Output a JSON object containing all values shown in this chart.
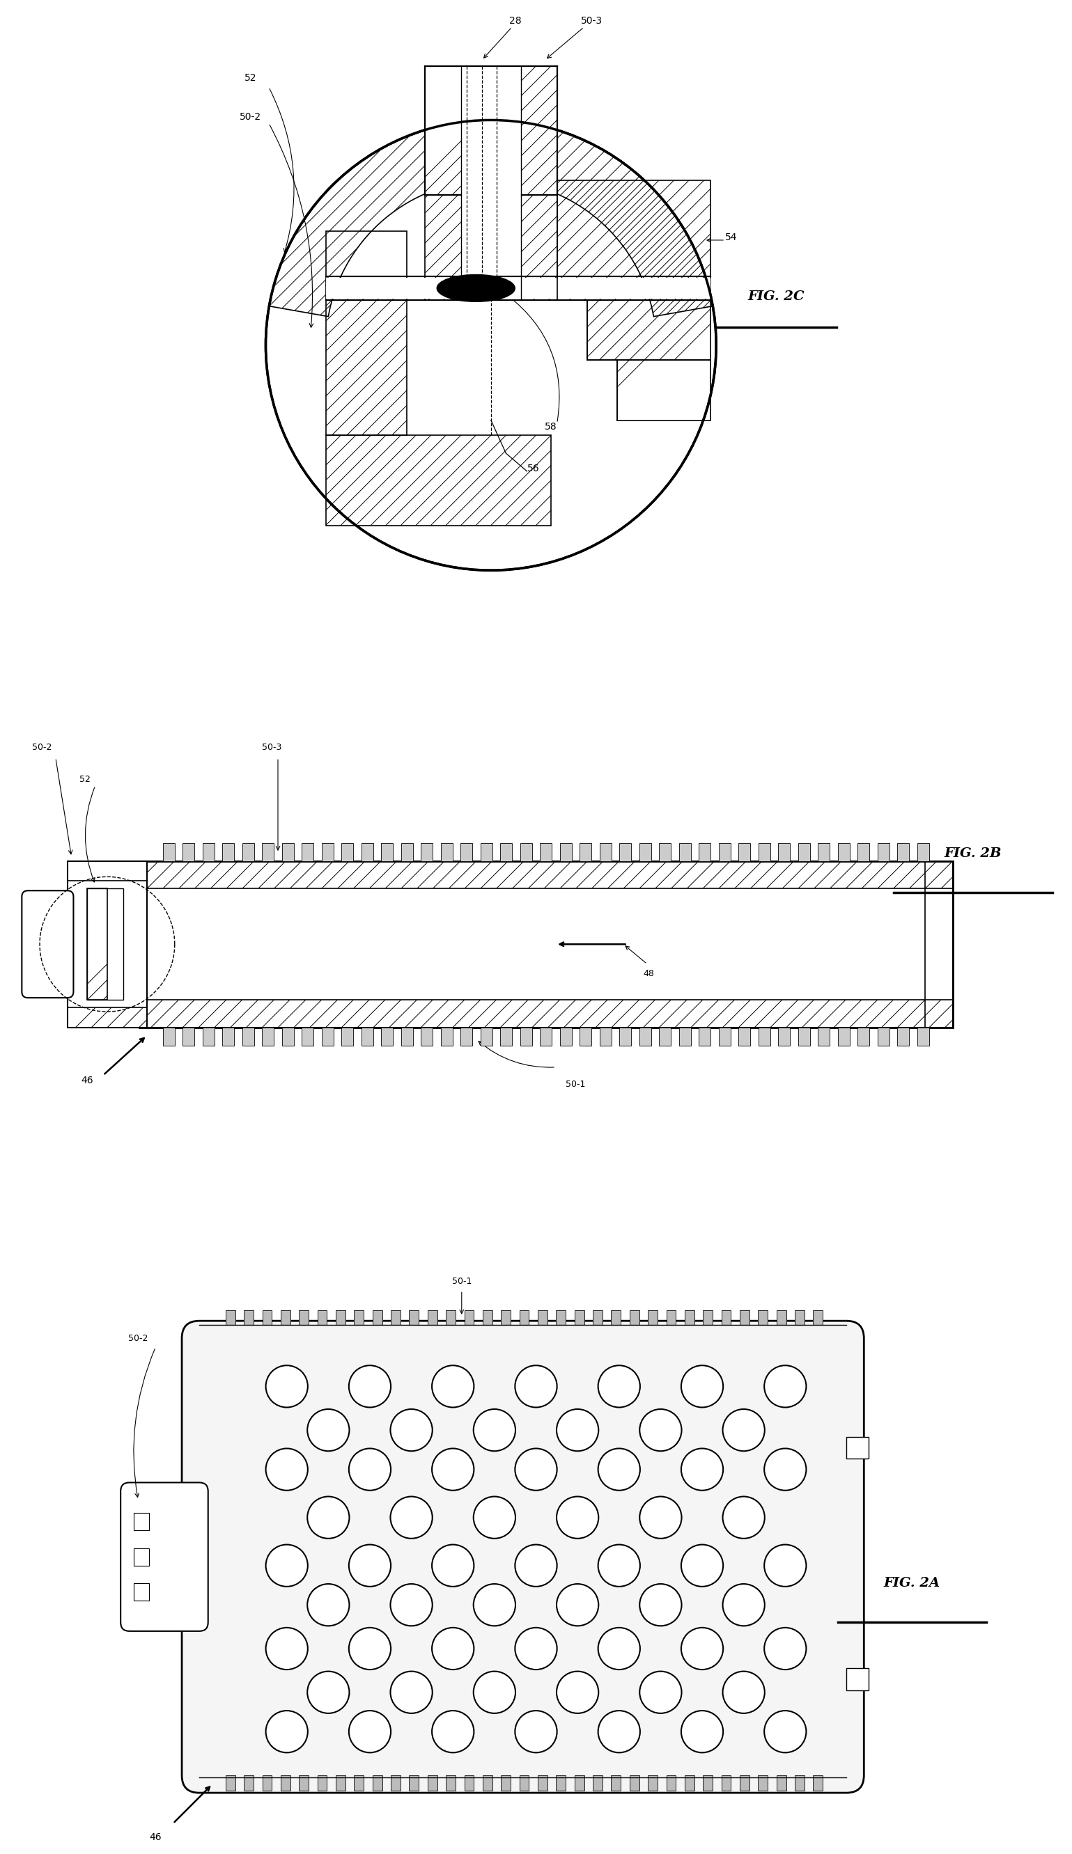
{
  "fig_width": 15.39,
  "fig_height": 26.63,
  "bg_color": "#ffffff",
  "line_color": "#000000",
  "fig2a_label": "FIG. 2A",
  "fig2b_label": "FIG. 2B",
  "fig2c_label": "FIG. 2C",
  "refs_2a": {
    "r46": "46",
    "r50_1": "50-1",
    "r50_2": "50-2"
  },
  "refs_2b": {
    "r46": "46",
    "r48": "48",
    "r50_1": "50-1",
    "r50_2": "50-2",
    "r50_3": "50-3",
    "r52": "52"
  },
  "refs_2c": {
    "r28": "28",
    "r50_2": "50-2",
    "r50_3": "50-3",
    "r52": "52",
    "r54": "54",
    "r56": "56",
    "r58": "58"
  }
}
